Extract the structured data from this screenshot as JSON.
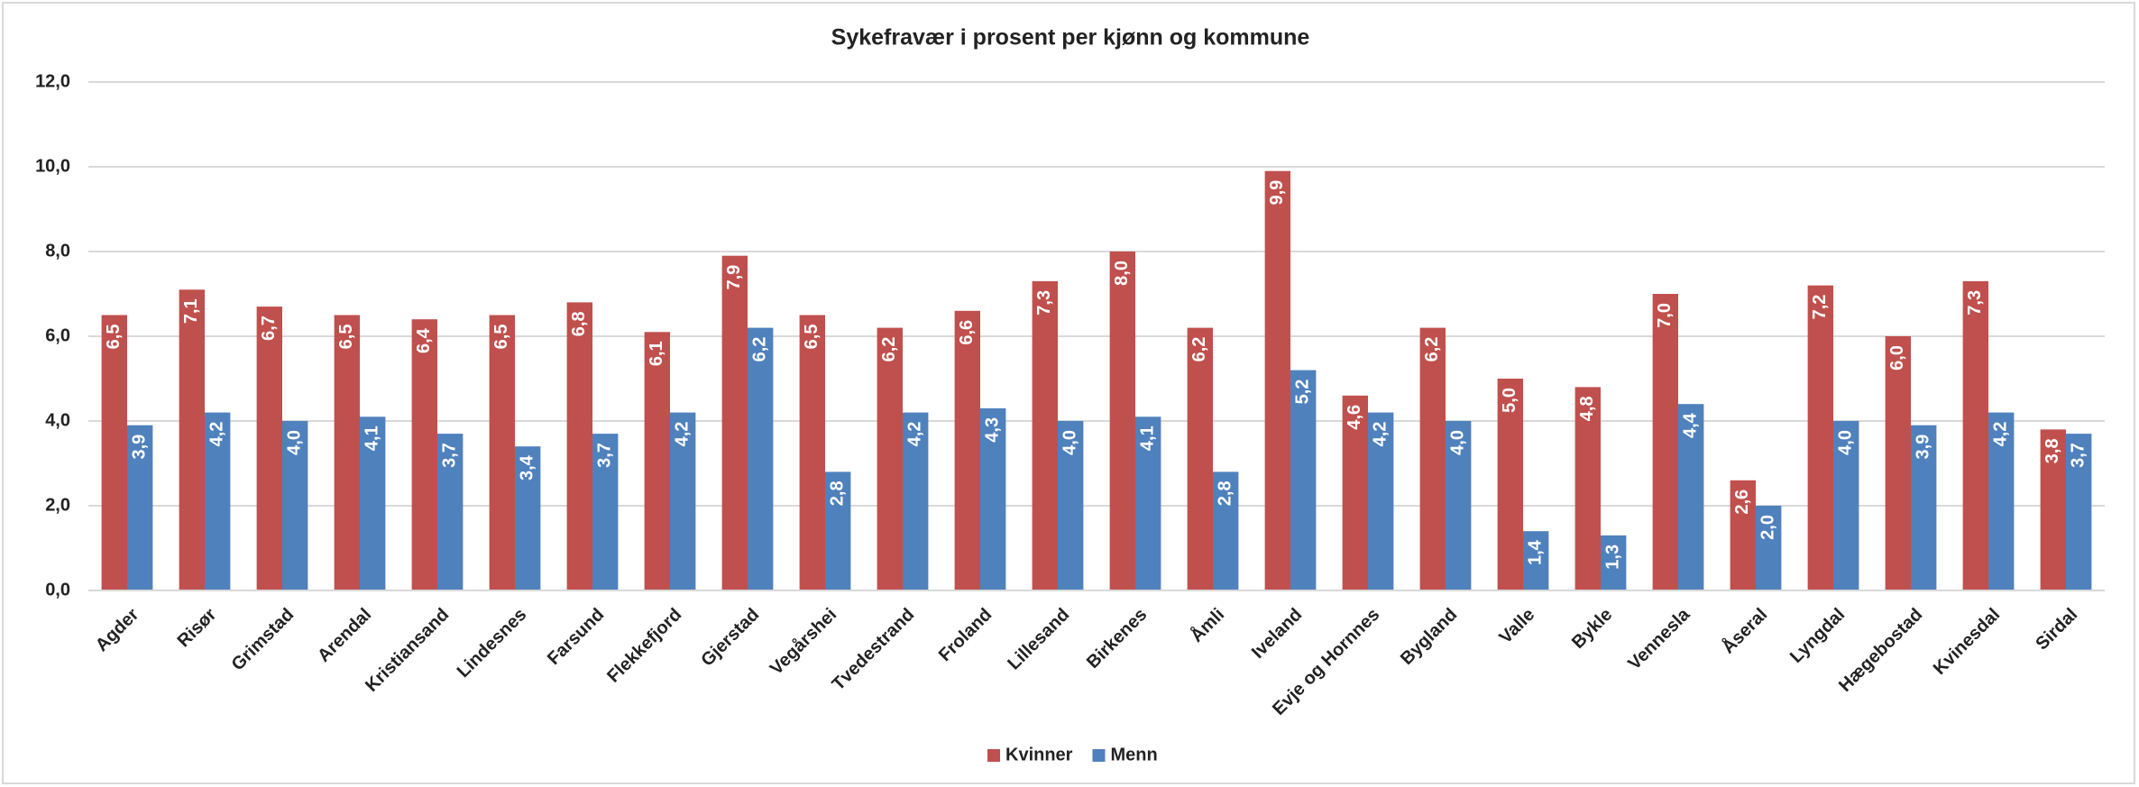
{
  "chart_data": {
    "type": "bar",
    "title": "Sykefravær i prosent per kjønn og kommune",
    "categories": [
      "Agder",
      "Risør",
      "Grimstad",
      "Arendal",
      "Kristiansand",
      "Lindesnes",
      "Farsund",
      "Flekkefjord",
      "Gjerstad",
      "Vegårshei",
      "Tvedestrand",
      "Froland",
      "Lillesand",
      "Birkenes",
      "Åmli",
      "Iveland",
      "Evje og Hornnes",
      "Bygland",
      "Valle",
      "Bykle",
      "Vennesla",
      "Åseral",
      "Lyngdal",
      "Hægebostad",
      "Kvinesdal",
      "Sirdal"
    ],
    "series": [
      {
        "name": "Kvinner",
        "color": "#c0504d",
        "values": [
          6.5,
          7.1,
          6.7,
          6.5,
          6.4,
          6.5,
          6.8,
          6.1,
          7.9,
          6.5,
          6.2,
          6.6,
          7.3,
          8.0,
          6.2,
          9.9,
          4.6,
          6.2,
          5.0,
          4.8,
          7.0,
          2.6,
          7.2,
          6.0,
          7.3,
          3.8
        ],
        "value_labels": [
          "6,5",
          "7,1",
          "6,7",
          "6,5",
          "6,4",
          "6,5",
          "6,8",
          "6,1",
          "7,9",
          "6,5",
          "6,2",
          "6,6",
          "7,3",
          "8,0",
          "6,2",
          "9,9",
          "4,6",
          "6,2",
          "5,0",
          "4,8",
          "7,0",
          "2,6",
          "7,2",
          "6,0",
          "7,3",
          "3,8"
        ]
      },
      {
        "name": "Menn",
        "color": "#4f81bd",
        "values": [
          3.9,
          4.2,
          4.0,
          4.1,
          3.7,
          3.4,
          3.7,
          4.2,
          6.2,
          2.8,
          4.2,
          4.3,
          4.0,
          4.1,
          2.8,
          5.2,
          4.2,
          4.0,
          1.4,
          1.3,
          4.4,
          2.0,
          4.0,
          3.9,
          4.2,
          3.7
        ],
        "value_labels": [
          "3,9",
          "4,2",
          "4,0",
          "4,1",
          "3,7",
          "3,4",
          "3,7",
          "4,2",
          "6,2",
          "2,8",
          "4,2",
          "4,3",
          "4,0",
          "4,1",
          "2,8",
          "5,2",
          "4,2",
          "4,0",
          "1,4",
          "1,3",
          "4,4",
          "2,0",
          "4,0",
          "3,9",
          "4,2",
          "3,7"
        ]
      }
    ],
    "ylim": [
      0,
      12
    ],
    "yticks": [
      {
        "value": 0,
        "label": "0,0"
      },
      {
        "value": 2,
        "label": "2,0"
      },
      {
        "value": 4,
        "label": "4,0"
      },
      {
        "value": 6,
        "label": "6,0"
      },
      {
        "value": 8,
        "label": "8,0"
      },
      {
        "value": 10,
        "label": "10,0"
      },
      {
        "value": 12,
        "label": "12,0"
      }
    ],
    "grid": true,
    "legend": "bottom"
  }
}
